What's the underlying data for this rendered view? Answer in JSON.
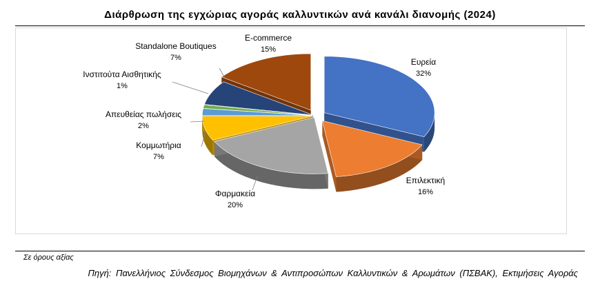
{
  "title": "Διάρθρωση της εγχώριας αγοράς καλλυντικών ανά κανάλι διανομής (2024)",
  "chart_data": {
    "type": "pie",
    "title": "Διάρθρωση της εγχώριας αγοράς καλλυντικών ανά κανάλι διανομής (2024)",
    "style": "3d-exploded",
    "slices": [
      {
        "label": "Ευρεία",
        "value": 32,
        "value_label": "32%",
        "color": "#4472C4"
      },
      {
        "label": "Επιλεκτική",
        "value": 16,
        "value_label": "16%",
        "color": "#ED7D31"
      },
      {
        "label": "Φαρμακεία",
        "value": 20,
        "value_label": "20%",
        "color": "#A5A5A5"
      },
      {
        "label": "Κομμωτήρια",
        "value": 7,
        "value_label": "7%",
        "color": "#FFC000"
      },
      {
        "label": "Απευθείας πωλήσεις",
        "value": 2,
        "value_label": "2%",
        "color": "#5B9BD5"
      },
      {
        "label": "Ινστιτούτα Αισθητικής",
        "value": 1,
        "value_label": "1%",
        "color": "#70AD47"
      },
      {
        "label": "Standalone Boutiques",
        "value": 7,
        "value_label": "7%",
        "color": "#264478"
      },
      {
        "label": "E-commerce",
        "value": 15,
        "value_label": "15%",
        "color": "#9E480E"
      }
    ]
  },
  "footnote": "Σε όρους αξίας",
  "source": "Πηγή: Πανελλήνιος Σύνδεσμος Βιομηχάνων & Αντιπροσώπων Καλλυντικών & Αρωμάτων (ΠΣΒΑΚ), Εκτιμήσεις Αγοράς"
}
